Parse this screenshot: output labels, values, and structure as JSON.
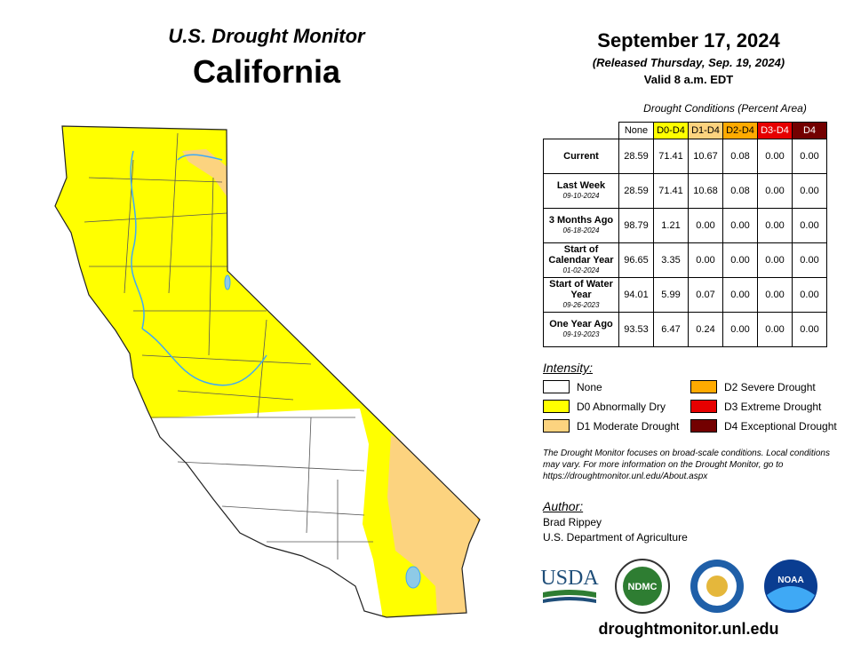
{
  "header": {
    "title": "U.S. Drought Monitor",
    "state": "California"
  },
  "dateline": {
    "date": "September 17, 2024",
    "released": "(Released Thursday, Sep. 19, 2024)",
    "valid": "Valid 8 a.m. EDT"
  },
  "table": {
    "caption": "Drought Conditions (Percent Area)",
    "columns": [
      {
        "label": "None",
        "color": "#ffffff",
        "text_color": "#000000"
      },
      {
        "label": "D0-D4",
        "color": "#ffff00",
        "text_color": "#000000"
      },
      {
        "label": "D1-D4",
        "color": "#fcd37f",
        "text_color": "#000000"
      },
      {
        "label": "D2-D4",
        "color": "#ffaa00",
        "text_color": "#000000"
      },
      {
        "label": "D3-D4",
        "color": "#e60000",
        "text_color": "#ffffff"
      },
      {
        "label": "D4",
        "color": "#730000",
        "text_color": "#ffffff"
      }
    ],
    "rows": [
      {
        "label": "Current",
        "cells": [
          "28.59",
          "71.41",
          "10.67",
          "0.08",
          "0.00",
          "0.00"
        ]
      },
      {
        "label": "Last Week",
        "date": "09-10-2024",
        "cells": [
          "28.59",
          "71.41",
          "10.68",
          "0.08",
          "0.00",
          "0.00"
        ]
      },
      {
        "label": "3 Months Ago",
        "date": "06-18-2024",
        "cells": [
          "98.79",
          "1.21",
          "0.00",
          "0.00",
          "0.00",
          "0.00"
        ]
      },
      {
        "label": "Start of Calendar Year",
        "date": "01-02-2024",
        "cells": [
          "96.65",
          "3.35",
          "0.00",
          "0.00",
          "0.00",
          "0.00"
        ]
      },
      {
        "label": "Start of Water Year",
        "date": "09-26-2023",
        "cells": [
          "94.01",
          "5.99",
          "0.07",
          "0.00",
          "0.00",
          "0.00"
        ]
      },
      {
        "label": "One Year Ago",
        "date": "09-19-2023",
        "cells": [
          "93.53",
          "6.47",
          "0.24",
          "0.00",
          "0.00",
          "0.00"
        ]
      }
    ]
  },
  "legend": {
    "title": "Intensity:",
    "items": [
      {
        "label": "None",
        "color": "#ffffff"
      },
      {
        "label": "D0 Abnormally Dry",
        "color": "#ffff00"
      },
      {
        "label": "D1 Moderate Drought",
        "color": "#fcd37f"
      },
      {
        "label": "D2 Severe Drought",
        "color": "#ffaa00"
      },
      {
        "label": "D3 Extreme Drought",
        "color": "#e60000"
      },
      {
        "label": "D4 Exceptional Drought",
        "color": "#730000"
      }
    ]
  },
  "note": "The Drought Monitor focuses on broad-scale conditions. Local conditions may vary. For more information on the Drought Monitor, go to https://droughtmonitor.unl.edu/About.aspx",
  "author": {
    "heading": "Author:",
    "name": "Brad Rippey",
    "agency": "U.S. Department of Agriculture"
  },
  "logos": [
    "USDA",
    "NDMC",
    "NOAA"
  ],
  "url": "droughtmonitor.unl.edu"
}
